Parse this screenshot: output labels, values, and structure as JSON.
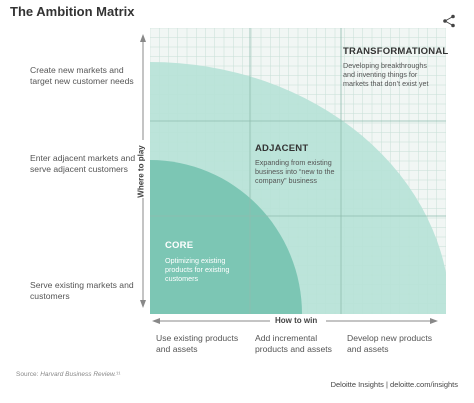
{
  "title": "The Ambition Matrix",
  "icons": {
    "share": "share-icon"
  },
  "y_axis": {
    "label": "Where to play",
    "rows": [
      "Create new markets and target new customer needs",
      "Enter adjacent markets and serve adjacent customers",
      "Serve existing markets and customers"
    ]
  },
  "x_axis": {
    "label": "How to win",
    "cols": [
      "Use existing products and assets",
      "Add incremental products and assets",
      "Develop new products and assets"
    ]
  },
  "zones": {
    "core": {
      "title": "CORE",
      "desc": "Optimizing existing products for existing customers"
    },
    "adjacent": {
      "title": "ADJACENT",
      "desc": "Expanding from existing business into “new to the company” business"
    },
    "transformational": {
      "title": "TRANSFORMATIONAL",
      "desc": "Developing breakthroughs and inventing things for markets that don’t exist yet"
    }
  },
  "source": {
    "prefix": "Source: ",
    "name": "Harvard Business Review.",
    "note": "¹¹"
  },
  "footer": "Deloitte Insights | deloitte.com/insights",
  "colors": {
    "grid_bg": "#f1f6f4",
    "grid_line": "#c6dfd6",
    "outer_zone": "#b7e2d7",
    "core_zone": "#7cc6b4",
    "axis": "#888888"
  }
}
